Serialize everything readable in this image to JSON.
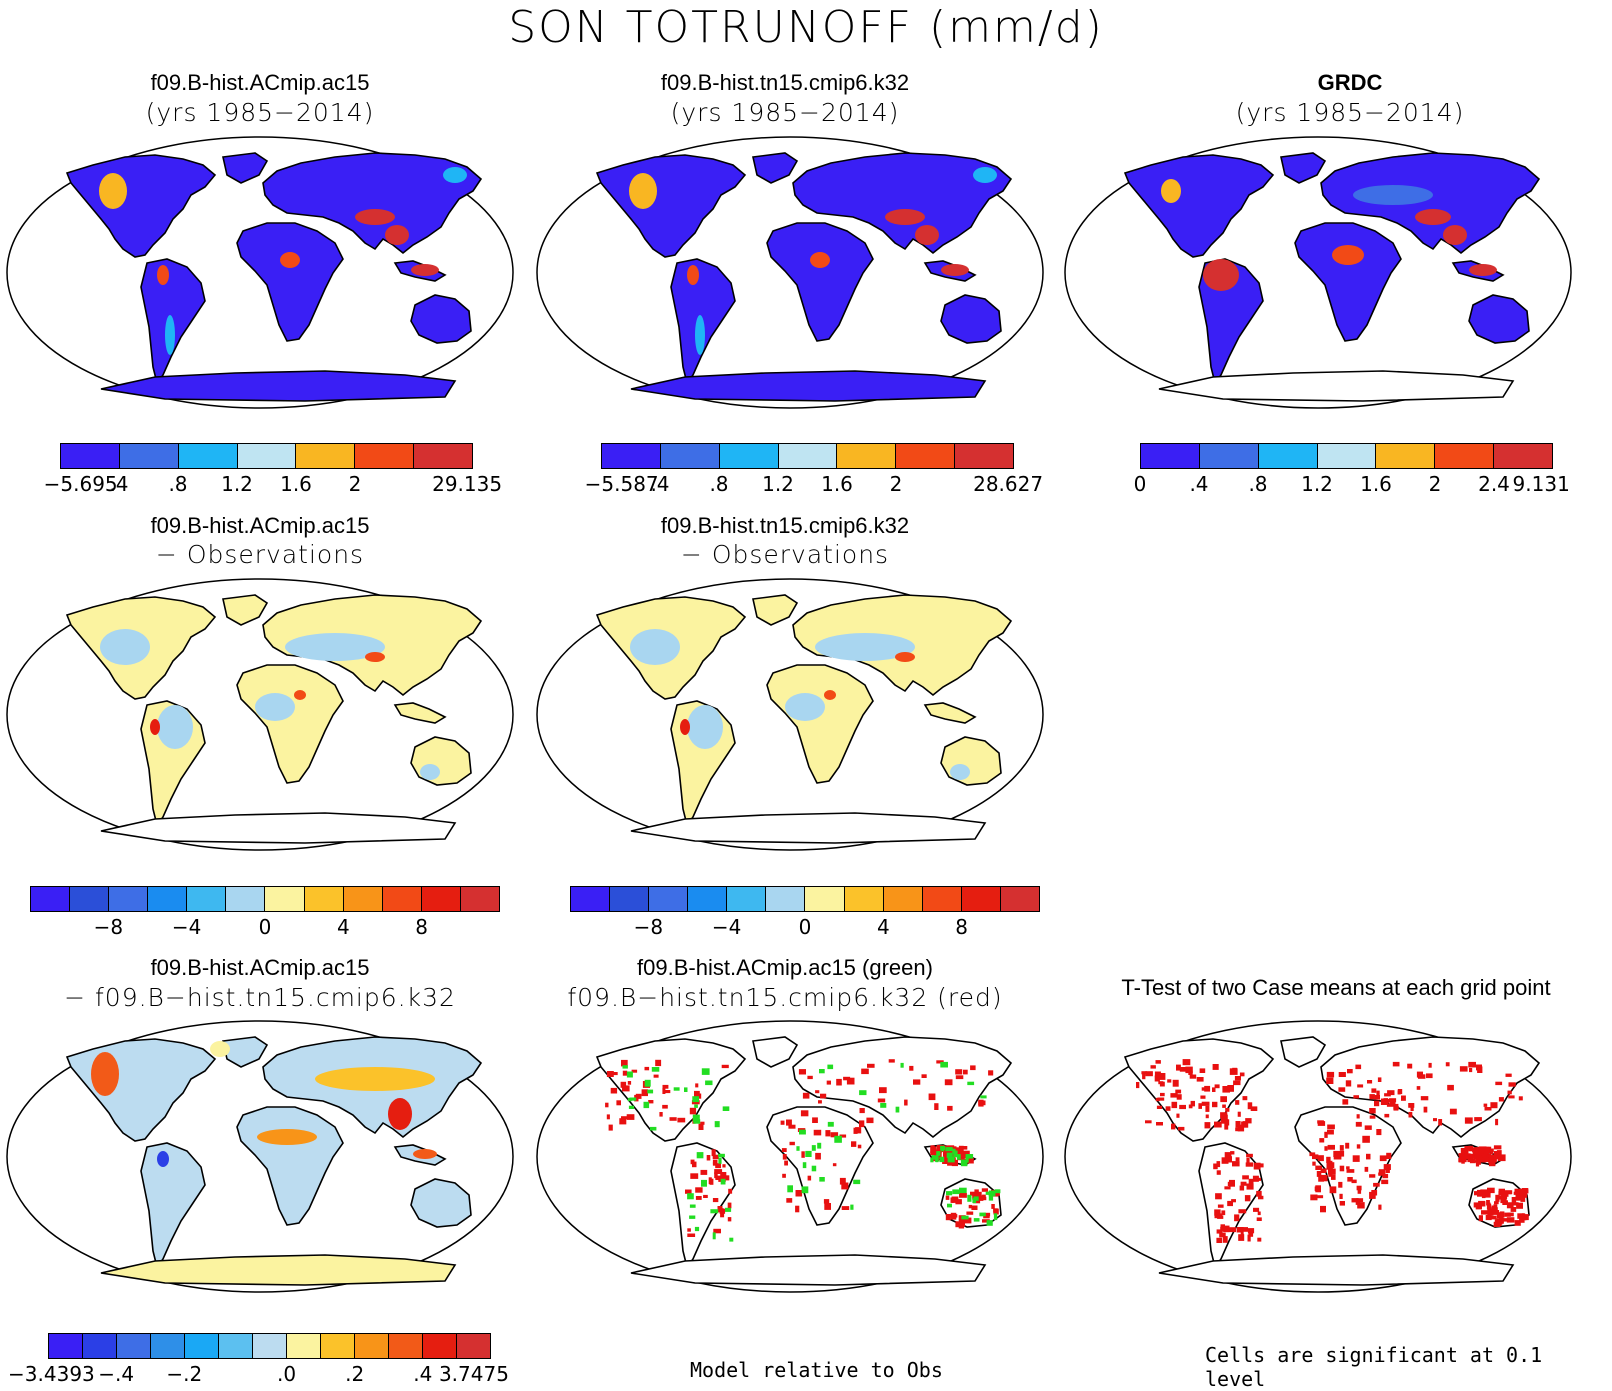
{
  "title": "SON TOTRUNOFF (mm/d)",
  "colors": {
    "seq": [
      "#3a1ff5",
      "#3e6ee6",
      "#1fb5f5",
      "#bfe4f2",
      "#f9b622",
      "#f24a16",
      "#d53030"
    ],
    "div": [
      "#3a1ff5",
      "#2b4fd8",
      "#3e6ee6",
      "#1a8cf0",
      "#3eb8f0",
      "#a9d6f0",
      "#fbf3a0",
      "#fbc22a",
      "#f89418",
      "#f24a16",
      "#e51e10",
      "#d53030"
    ],
    "diff13": [
      "#3a1ff5",
      "#2b3fe6",
      "#3e6ee6",
      "#2e8fe8",
      "#1aa8f5",
      "#5cc0f0",
      "#bcdcf0",
      "#fbf3a0",
      "#fbc22a",
      "#f89418",
      "#f25a18",
      "#e51e10",
      "#d53030"
    ],
    "land": "#3a1ff5",
    "diffland": "#fbf3a0",
    "sig_red": "#e81010",
    "sig_green": "#22dd22"
  },
  "panels": [
    {
      "id": "a",
      "line1": "f09.B-hist.ACmip.ac15",
      "line2": "(yrs 1985−2014)"
    },
    {
      "id": "b",
      "line1": "f09.B-hist.tn15.cmip6.k32",
      "line2": "(yrs 1985−2014)"
    },
    {
      "id": "c",
      "line1": "GRDC",
      "line2": "(yrs 1985−2014)"
    },
    {
      "id": "d",
      "line1": "f09.B-hist.ACmip.ac15",
      "line2": "− Observations"
    },
    {
      "id": "e",
      "line1": "f09.B-hist.tn15.cmip6.k32",
      "line2": "− Observations"
    },
    {
      "id": "g",
      "line1": "f09.B-hist.ACmip.ac15",
      "line2": "− f09.B−hist.tn15.cmip6.k32"
    },
    {
      "id": "h",
      "line1": "f09.B-hist.ACmip.ac15 (green)",
      "line2": "f09.B−hist.tn15.cmip6.k32 (red)"
    },
    {
      "id": "i",
      "line1": "T-Test of two Case means at each grid point",
      "line2": ""
    }
  ],
  "colorbars": {
    "a": [
      "−5.695",
      ".4",
      ".8",
      "1.2",
      "1.6",
      "2",
      "29.135"
    ],
    "b": [
      "−5.587",
      ".4",
      ".8",
      "1.2",
      "1.6",
      "2",
      "28.627"
    ],
    "c": [
      "0",
      ".4",
      ".8",
      "1.2",
      "1.6",
      "2",
      "2.4",
      "9.131"
    ],
    "d": [
      "−8",
      "−4",
      "0",
      "4",
      "8"
    ],
    "e": [
      "−8",
      "−4",
      "0",
      "4",
      "8"
    ],
    "g": [
      "−3.4393",
      "−.4",
      "−.2",
      ".0",
      ".2",
      ".4",
      "3.7475"
    ]
  },
  "footnotes": {
    "model_rel": "Model relative to Obs",
    "signif": "Cells are significant at 0.1 level"
  }
}
